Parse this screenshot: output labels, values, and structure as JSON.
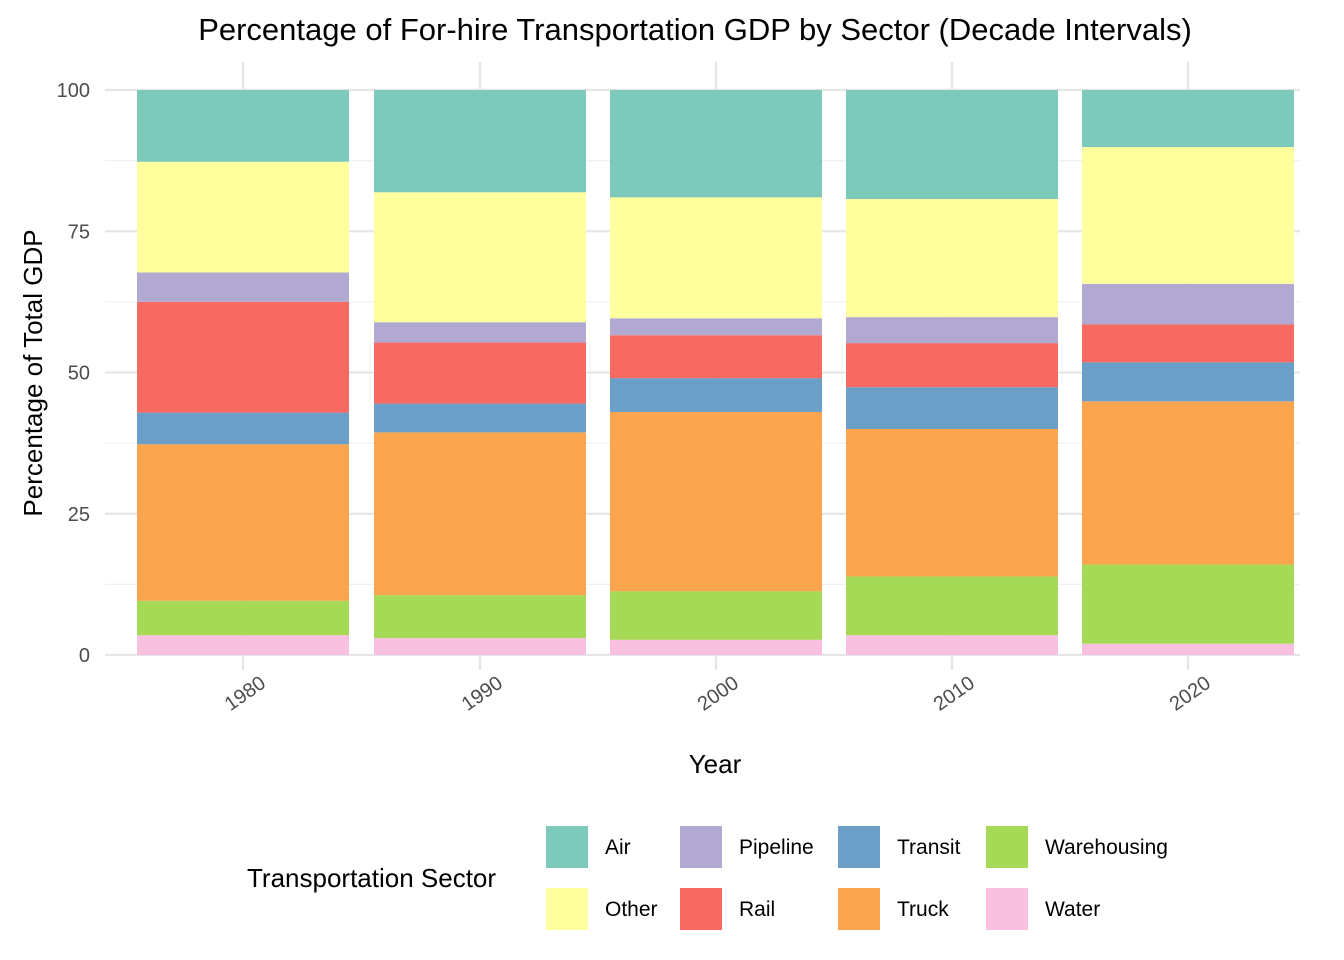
{
  "chart_data": {
    "type": "bar",
    "stacked": true,
    "title": "Percentage of For-hire Transportation GDP by Sector (Decade Intervals)",
    "xlabel": "Year",
    "ylabel": "Percentage of Total GDP",
    "categories": [
      "1980",
      "1990",
      "2000",
      "2010",
      "2020"
    ],
    "yticks": [
      "0",
      "25",
      "50",
      "75",
      "100"
    ],
    "ylim": [
      0,
      100
    ],
    "grid": true,
    "legend": {
      "title": "Transportation Sector",
      "position": "bottom"
    },
    "series": [
      {
        "name": "Water",
        "color": "#F9C0DF",
        "values": [
          3.5,
          3.0,
          2.7,
          3.5,
          2.0
        ]
      },
      {
        "name": "Warehousing",
        "color": "#A6D955",
        "values": [
          6.1,
          7.6,
          8.6,
          10.4,
          14.0
        ]
      },
      {
        "name": "Truck",
        "color": "#FBA54F",
        "values": [
          27.7,
          28.8,
          31.7,
          26.1,
          28.9
        ]
      },
      {
        "name": "Transit",
        "color": "#6C9FC8",
        "values": [
          5.6,
          5.1,
          6.0,
          7.4,
          6.9
        ]
      },
      {
        "name": "Rail",
        "color": "#F66A61",
        "values": [
          19.6,
          10.8,
          7.6,
          7.8,
          6.7
        ]
      },
      {
        "name": "Pipeline",
        "color": "#B1A9D1",
        "values": [
          5.2,
          3.6,
          3.0,
          4.6,
          7.2
        ]
      },
      {
        "name": "Other",
        "color": "#FFFF9E",
        "values": [
          19.6,
          23.0,
          21.4,
          20.9,
          24.2
        ]
      },
      {
        "name": "Air",
        "color": "#7ECABA",
        "values": [
          12.7,
          18.1,
          19.0,
          19.3,
          10.1
        ]
      }
    ],
    "legend_order": [
      "Air",
      "Other",
      "Pipeline",
      "Rail",
      "Transit",
      "Truck",
      "Warehousing",
      "Water"
    ]
  }
}
